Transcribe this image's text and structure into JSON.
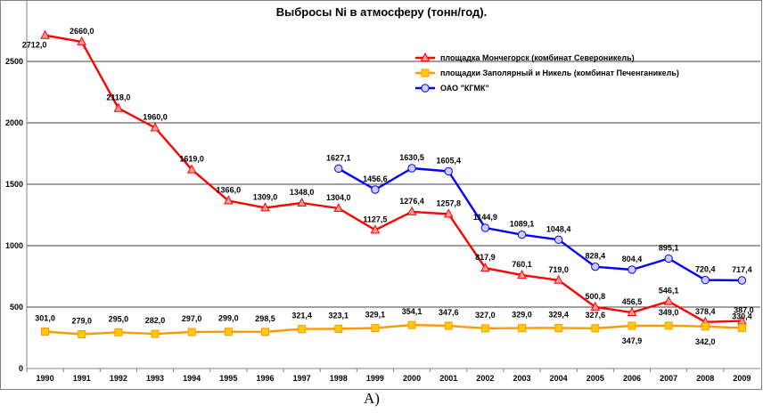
{
  "chart_data": {
    "type": "line",
    "title": "Выбросы Ni в атмосферу (тонн/год).",
    "caption": "А)",
    "categories": [
      "1990",
      "1991",
      "1992",
      "1993",
      "1994",
      "1995",
      "1996",
      "1997",
      "1998",
      "1999",
      "2000",
      "2001",
      "2002",
      "2003",
      "2004",
      "2005",
      "2006",
      "2007",
      "2008",
      "2009"
    ],
    "ylim": [
      0,
      3000
    ],
    "yticks": [
      "0",
      "500",
      "1000",
      "1500",
      "2000",
      "2500"
    ],
    "grid": true,
    "legend_position": "top-right",
    "series": [
      {
        "name": "площадка Мончегорск (комбинат Североникель)",
        "color": "#ff0000",
        "marker_fill": "#ff9999",
        "marker": "triangle",
        "values": [
          2712.0,
          2660.0,
          2118.0,
          1960.0,
          1619.0,
          1366.0,
          1309.0,
          1348.0,
          1304.0,
          1127.5,
          1276.4,
          1257.8,
          817.9,
          760.1,
          719.0,
          500.8,
          456.5,
          546.1,
          378.4,
          387.0
        ],
        "labels": [
          "2712,0",
          "2660,0",
          "2118,0",
          "1960,0",
          "1619,0",
          "1366,0",
          "1309,0",
          "1348,0",
          "1304,0",
          "1127,5",
          "1276,4",
          "1257,8",
          "817,9",
          "760,1",
          "719,0",
          "500,8",
          "456,5",
          "546,1",
          "378,4",
          "387,0"
        ]
      },
      {
        "name": "площадки Заполярный и Никель (комбинат Печенганикель)",
        "color": "#ff9900",
        "marker_fill": "#ffcc00",
        "marker": "square",
        "values": [
          301.0,
          279.0,
          295.0,
          282.0,
          297.0,
          299.0,
          298.5,
          321.4,
          323.1,
          329.1,
          354.1,
          347.6,
          327.0,
          329.0,
          329.4,
          327.6,
          347.9,
          349.0,
          342.0,
          330.4
        ],
        "labels": [
          "301,0",
          "279,0",
          "295,0",
          "282,0",
          "297,0",
          "299,0",
          "298,5",
          "321,4",
          "323,1",
          "329,1",
          "354,1",
          "347,6",
          "327,0",
          "329,0",
          "329,4",
          "327,6",
          "347,9",
          "349,0",
          "342,0",
          "330,4"
        ]
      },
      {
        "name": "ОАО \"КГМК\"",
        "color": "#0000ff",
        "marker_fill": "#ccccff",
        "marker": "circle",
        "values": [
          null,
          null,
          null,
          null,
          null,
          null,
          null,
          null,
          1627.1,
          1456.6,
          1630.5,
          1605.4,
          1144.9,
          1089.1,
          1048.4,
          828.4,
          804.4,
          895.1,
          720.4,
          717.4
        ],
        "labels": [
          null,
          null,
          null,
          null,
          null,
          null,
          null,
          null,
          "1627,1",
          "1456,6",
          "1630,5",
          "1605,4",
          "1144,9",
          "1089,1",
          "1048,4",
          "828,4",
          "804,4",
          "895,1",
          "720,4",
          "717,4"
        ]
      }
    ]
  }
}
